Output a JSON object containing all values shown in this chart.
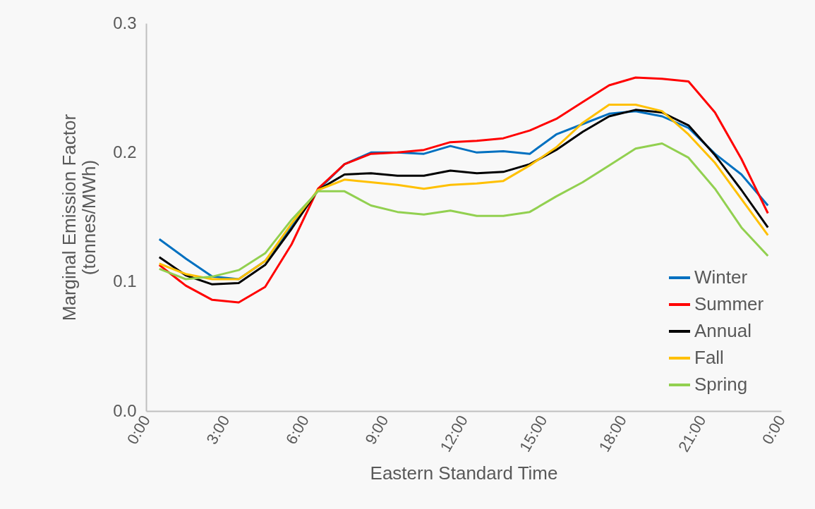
{
  "chart_data": {
    "type": "line",
    "xlabel": "Eastern Standard Time",
    "ylabel": "Marginal Emission Factor (tonnes/MWh)",
    "x": [
      0.5,
      1.5,
      2.5,
      3.5,
      4.5,
      5.5,
      6.5,
      7.5,
      8.5,
      9.5,
      10.5,
      11.5,
      12.5,
      13.5,
      14.5,
      15.5,
      16.5,
      17.5,
      18.5,
      19.5,
      20.5,
      21.5,
      22.5,
      23.5
    ],
    "xlim": [
      0,
      24
    ],
    "xticks": [
      {
        "value": 0,
        "label": "0:00"
      },
      {
        "value": 3,
        "label": "3:00"
      },
      {
        "value": 6,
        "label": "6:00"
      },
      {
        "value": 9,
        "label": "9:00"
      },
      {
        "value": 12,
        "label": "12:00"
      },
      {
        "value": 15,
        "label": "15:00"
      },
      {
        "value": 18,
        "label": "18:00"
      },
      {
        "value": 21,
        "label": "21:00"
      },
      {
        "value": 24,
        "label": "0:00"
      }
    ],
    "ylim": [
      0,
      0.3
    ],
    "yticks": [
      {
        "value": 0,
        "label": "0.0"
      },
      0.1,
      0.2,
      0.3
    ],
    "grid": false,
    "legend": "bottom right",
    "marker": "none",
    "line_style": "solid",
    "series": [
      {
        "name": "Winter",
        "color": "#0070c0",
        "values": [
          0.133,
          0.118,
          0.104,
          0.102,
          0.116,
          0.143,
          0.171,
          0.191,
          0.2,
          0.2,
          0.199,
          0.205,
          0.2,
          0.201,
          0.199,
          0.214,
          0.222,
          0.23,
          0.232,
          0.228,
          0.219,
          0.199,
          0.183,
          0.159
        ]
      },
      {
        "name": "Summer",
        "color": "#ff0000",
        "values": [
          0.113,
          0.097,
          0.086,
          0.084,
          0.096,
          0.129,
          0.172,
          0.191,
          0.199,
          0.2,
          0.202,
          0.208,
          0.209,
          0.211,
          0.217,
          0.226,
          0.239,
          0.252,
          0.258,
          0.257,
          0.255,
          0.231,
          0.195,
          0.153
        ]
      },
      {
        "name": "Annual",
        "color": "#000000",
        "values": [
          0.119,
          0.105,
          0.098,
          0.099,
          0.113,
          0.141,
          0.171,
          0.183,
          0.184,
          0.182,
          0.182,
          0.186,
          0.184,
          0.185,
          0.191,
          0.202,
          0.216,
          0.228,
          0.233,
          0.231,
          0.221,
          0.198,
          0.171,
          0.142
        ]
      },
      {
        "name": "Fall",
        "color": "#ffc000",
        "values": [
          0.114,
          0.106,
          0.102,
          0.102,
          0.116,
          0.145,
          0.171,
          0.179,
          0.177,
          0.175,
          0.172,
          0.175,
          0.176,
          0.178,
          0.19,
          0.204,
          0.223,
          0.237,
          0.237,
          0.232,
          0.214,
          0.192,
          0.164,
          0.136
        ]
      },
      {
        "name": "Spring",
        "color": "#92d050",
        "values": [
          0.11,
          0.102,
          0.104,
          0.109,
          0.122,
          0.148,
          0.17,
          0.17,
          0.159,
          0.154,
          0.152,
          0.155,
          0.151,
          0.151,
          0.154,
          0.166,
          0.177,
          0.19,
          0.203,
          0.207,
          0.196,
          0.172,
          0.142,
          0.12
        ]
      }
    ]
  }
}
